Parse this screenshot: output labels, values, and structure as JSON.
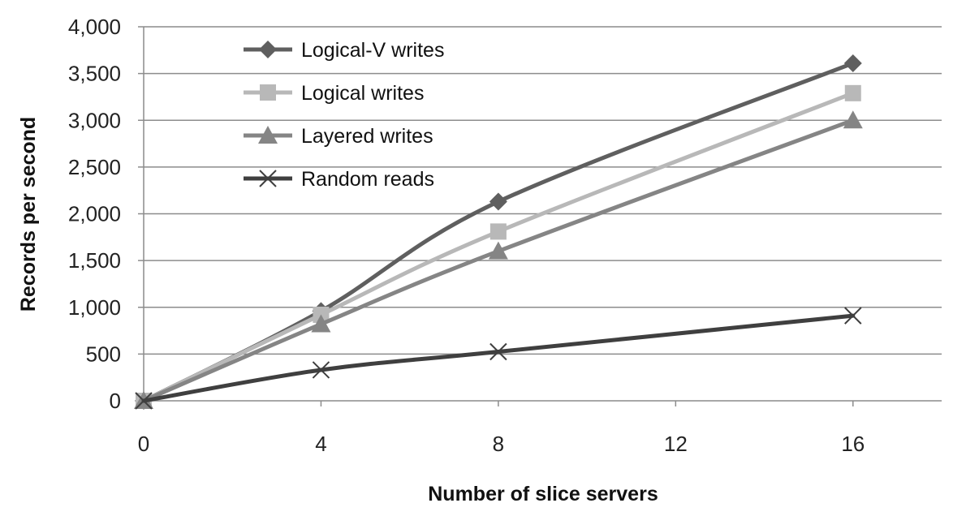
{
  "chart_data": {
    "type": "line",
    "title": "",
    "xlabel": "Number of slice servers",
    "ylabel": "Records per second",
    "xlim": [
      0,
      18
    ],
    "ylim": [
      0,
      4000
    ],
    "x_ticks": [
      0,
      4,
      8,
      12,
      16
    ],
    "x_tick_labels": [
      "0",
      "4",
      "8",
      "12",
      "16"
    ],
    "y_ticks": [
      0,
      500,
      1000,
      1500,
      2000,
      2500,
      3000,
      3500,
      4000
    ],
    "y_tick_labels": [
      "0",
      "500",
      "1,000",
      "1,500",
      "2,000",
      "2,500",
      "3,000",
      "3,500",
      "4,000"
    ],
    "grid": "horizontal",
    "smoothed": true,
    "legend_position": "top-left",
    "x": [
      0,
      4,
      8,
      16
    ],
    "series": [
      {
        "name": "Logical-V writes",
        "values": [
          0,
          960,
          2130,
          3610
        ],
        "color": "#5f5f5f",
        "marker": "diamond"
      },
      {
        "name": "Logical writes",
        "values": [
          0,
          920,
          1810,
          3290
        ],
        "color": "#b8b8b8",
        "marker": "square"
      },
      {
        "name": "Layered writes",
        "values": [
          0,
          820,
          1600,
          3000
        ],
        "color": "#858585",
        "marker": "triangle"
      },
      {
        "name": "Random reads",
        "values": [
          0,
          330,
          525,
          910
        ],
        "color": "#3f3f3f",
        "marker": "x"
      }
    ]
  }
}
